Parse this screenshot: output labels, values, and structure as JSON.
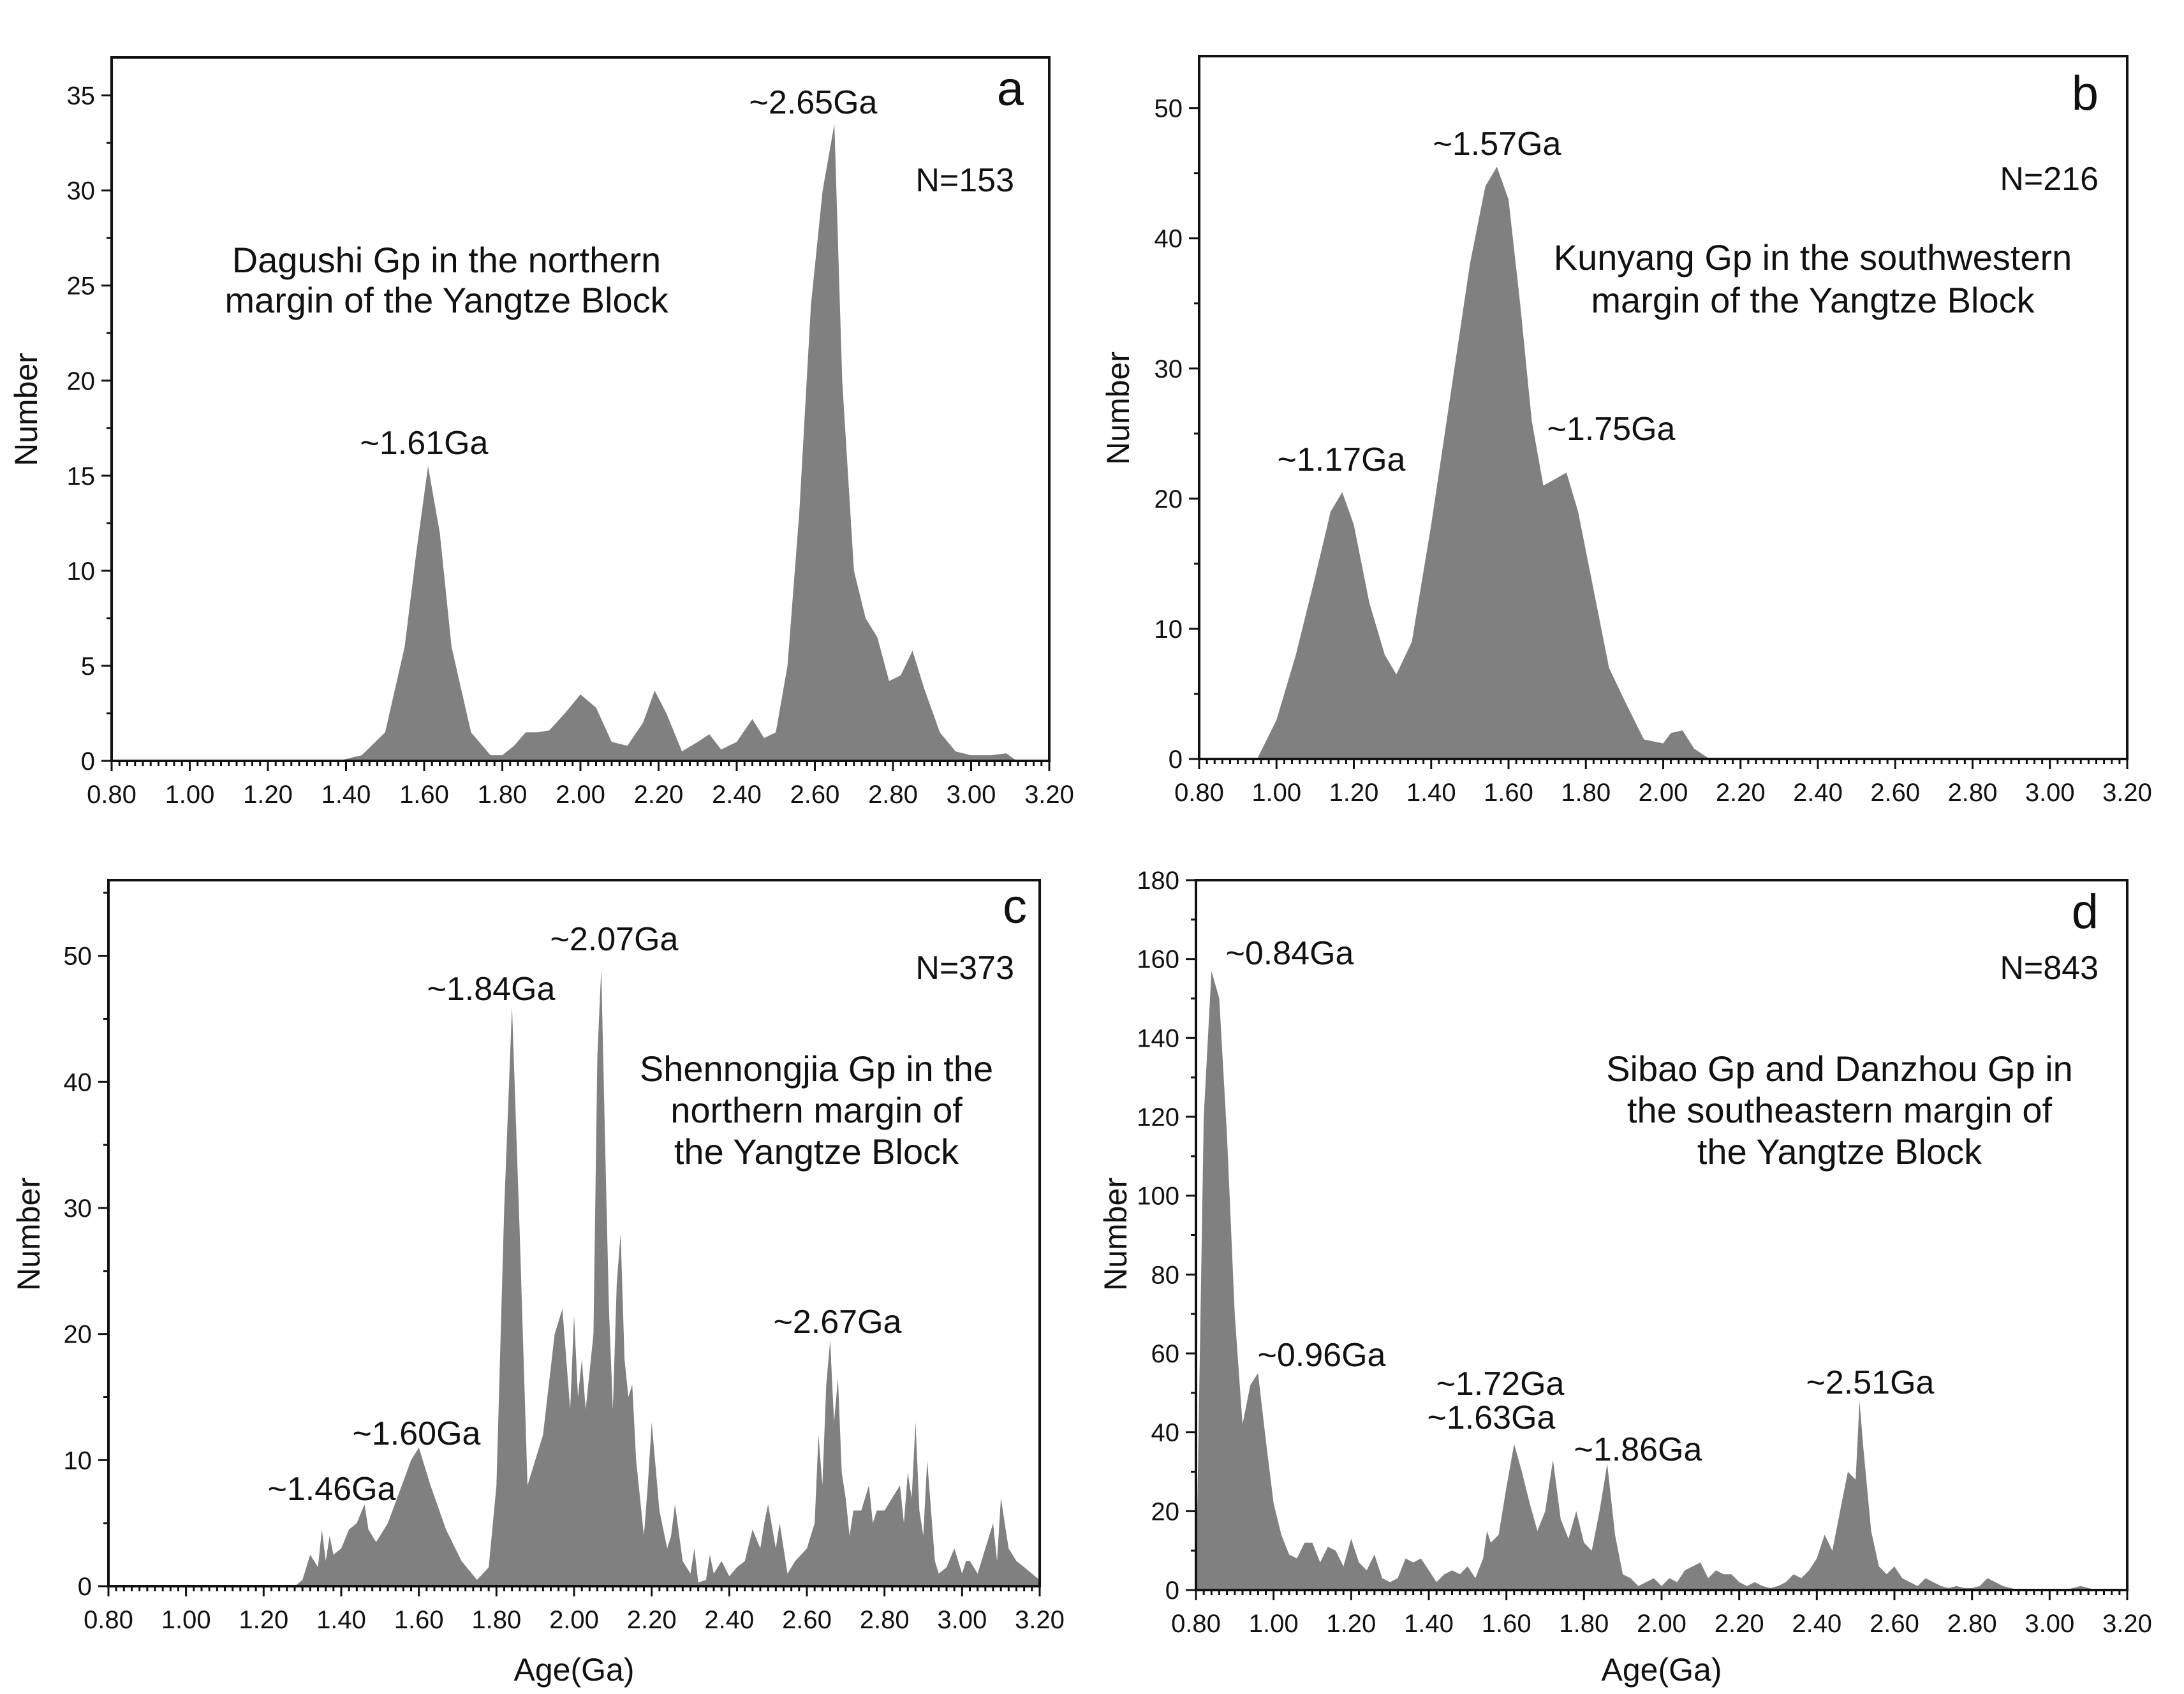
{
  "figure": {
    "colors": {
      "fill": "#808080",
      "axis": "#111111",
      "text": "#111111",
      "background": "#ffffff"
    }
  },
  "chart_data": [
    {
      "panel": "a",
      "type": "area",
      "title": "",
      "xlabel": "",
      "ylabel": "Number",
      "xlim": [
        0.8,
        3.2
      ],
      "ylim": [
        0,
        37
      ],
      "yticks": [
        0,
        5,
        10,
        15,
        20,
        25,
        30,
        35
      ],
      "xtick_labels": [
        "0.80",
        "1.00",
        "1.20",
        "1.40",
        "1.60",
        "1.80",
        "2.00",
        "2.20",
        "2.40",
        "2.60",
        "2.80",
        "3.00",
        "3.20"
      ],
      "ytick_labels": [
        "0",
        "5",
        "10",
        "15",
        "20",
        "25",
        "30",
        "35"
      ],
      "n_label": "N=153",
      "caption": [
        "Dagushi  Gp  in the northern",
        "margin of the Yangtze  Block"
      ],
      "peaks": [
        {
          "label": "~1.61Ga",
          "age": 1.61,
          "value": 15.5
        },
        {
          "label": "~2.65Ga",
          "age": 2.65,
          "value": 33.5
        }
      ],
      "series": [
        {
          "name": "Dagushi Gp",
          "x": [
            0.8,
            1.38,
            1.44,
            1.5,
            1.55,
            1.58,
            1.61,
            1.64,
            1.67,
            1.72,
            1.77,
            1.8,
            1.83,
            1.86,
            1.89,
            1.92,
            1.96,
            2.0,
            2.04,
            2.08,
            2.12,
            2.16,
            2.19,
            2.22,
            2.26,
            2.3,
            2.33,
            2.36,
            2.4,
            2.44,
            2.47,
            2.5,
            2.53,
            2.56,
            2.59,
            2.62,
            2.65,
            2.67,
            2.7,
            2.73,
            2.76,
            2.79,
            2.82,
            2.85,
            2.88,
            2.92,
            2.96,
            3.0,
            3.05,
            3.09,
            3.11,
            3.12
          ],
          "y": [
            0,
            0,
            0.3,
            1.5,
            6,
            11,
            15.5,
            12,
            6,
            1.5,
            0.3,
            0.3,
            0.8,
            1.5,
            1.5,
            1.6,
            2.5,
            3.5,
            2.8,
            1,
            0.8,
            2,
            3.7,
            2.5,
            0.5,
            1,
            1.4,
            0.6,
            1,
            2.2,
            1.2,
            1.5,
            5,
            13,
            24,
            30,
            33.5,
            20,
            10,
            7.5,
            6.5,
            4.2,
            4.5,
            5.8,
            3.8,
            1.5,
            0.5,
            0.3,
            0.3,
            0.4,
            0.1,
            0
          ]
        }
      ]
    },
    {
      "panel": "b",
      "type": "area",
      "title": "",
      "xlabel": "",
      "ylabel": "Number",
      "xlim": [
        0.8,
        3.2
      ],
      "ylim": [
        0,
        54
      ],
      "yticks": [
        0,
        10,
        20,
        30,
        40,
        50
      ],
      "xtick_labels": [
        "0.80",
        "1.00",
        "1.20",
        "1.40",
        "1.60",
        "1.80",
        "2.00",
        "2.20",
        "2.40",
        "2.60",
        "2.80",
        "3.00",
        "3.20"
      ],
      "ytick_labels": [
        "0",
        "10",
        "20",
        "30",
        "40",
        "50"
      ],
      "n_label": "N=216",
      "caption": [
        "Kunyang  Gp  in the southwestern",
        "margin of the Yangtze  Block"
      ],
      "peaks": [
        {
          "label": "~1.17Ga",
          "age": 1.17,
          "value": 20.5
        },
        {
          "label": "~1.57Ga",
          "age": 1.57,
          "value": 45.5
        },
        {
          "label": "~1.75Ga",
          "age": 1.75,
          "value": 22.0
        }
      ],
      "series": [
        {
          "name": "Kunyang Gp",
          "x": [
            0.8,
            0.95,
            1.0,
            1.05,
            1.1,
            1.14,
            1.17,
            1.2,
            1.24,
            1.28,
            1.31,
            1.35,
            1.4,
            1.45,
            1.5,
            1.54,
            1.57,
            1.6,
            1.63,
            1.66,
            1.69,
            1.72,
            1.75,
            1.78,
            1.82,
            1.86,
            1.9,
            1.95,
            2.0,
            2.02,
            2.05,
            2.08,
            2.12,
            3.2
          ],
          "y": [
            0,
            0,
            3,
            8,
            14,
            19,
            20.5,
            18,
            12,
            8,
            6.5,
            9,
            18,
            28,
            38,
            44,
            45.5,
            43,
            35,
            26,
            21,
            21.5,
            22,
            19,
            13,
            7,
            4.5,
            1.5,
            1.2,
            2,
            2.2,
            0.8,
            0,
            0
          ]
        }
      ]
    },
    {
      "panel": "c",
      "type": "area",
      "title": "",
      "xlabel": "Age(Ga)",
      "ylabel": "Number",
      "xlim": [
        0.8,
        3.2
      ],
      "ylim": [
        0,
        56
      ],
      "yticks": [
        0,
        10,
        20,
        30,
        40,
        50
      ],
      "xtick_labels": [
        "0.80",
        "1.00",
        "1.20",
        "1.40",
        "1.60",
        "1.80",
        "2.00",
        "2.20",
        "2.40",
        "2.60",
        "2.80",
        "3.00",
        "3.20"
      ],
      "ytick_labels": [
        "0",
        "10",
        "20",
        "30",
        "40",
        "50"
      ],
      "n_label": "N=373",
      "caption": [
        "Shennongjia  Gp  in the",
        "northern margin of",
        "the Yangtze  Block"
      ],
      "peaks": [
        {
          "label": "~1.46Ga",
          "age": 1.46,
          "value": 6.5
        },
        {
          "label": "~1.60Ga",
          "age": 1.6,
          "value": 11.0
        },
        {
          "label": "~1.84Ga",
          "age": 1.84,
          "value": 46.0
        },
        {
          "label": "~2.07Ga",
          "age": 2.07,
          "value": 49.0
        },
        {
          "label": "~2.67Ga",
          "age": 2.67,
          "value": 19.5
        }
      ],
      "series": [
        {
          "name": "Shennongjia Gp",
          "x": [
            0.8,
            1.28,
            1.3,
            1.32,
            1.34,
            1.35,
            1.36,
            1.37,
            1.38,
            1.4,
            1.42,
            1.44,
            1.46,
            1.47,
            1.49,
            1.52,
            1.55,
            1.58,
            1.6,
            1.63,
            1.67,
            1.71,
            1.75,
            1.78,
            1.8,
            1.82,
            1.84,
            1.86,
            1.88,
            1.92,
            1.95,
            1.97,
            1.99,
            2.0,
            2.01,
            2.02,
            2.03,
            2.05,
            2.06,
            2.07,
            2.08,
            2.09,
            2.1,
            2.11,
            2.12,
            2.13,
            2.14,
            2.15,
            2.16,
            2.18,
            2.19,
            2.2,
            2.22,
            2.24,
            2.25,
            2.26,
            2.28,
            2.3,
            2.31,
            2.32,
            2.34,
            2.35,
            2.36,
            2.38,
            2.4,
            2.42,
            2.44,
            2.46,
            2.48,
            2.49,
            2.5,
            2.52,
            2.53,
            2.55,
            2.57,
            2.6,
            2.62,
            2.63,
            2.64,
            2.65,
            2.66,
            2.67,
            2.68,
            2.69,
            2.7,
            2.71,
            2.72,
            2.74,
            2.76,
            2.77,
            2.78,
            2.8,
            2.82,
            2.84,
            2.85,
            2.86,
            2.87,
            2.88,
            2.89,
            2.9,
            2.91,
            2.92,
            2.93,
            2.94,
            2.96,
            2.98,
            3.0,
            3.01,
            3.02,
            3.04,
            3.06,
            3.08,
            3.09,
            3.1,
            3.11,
            3.12,
            3.14,
            3.16,
            3.18,
            3.2
          ],
          "y": [
            0,
            0,
            0.5,
            2.5,
            1.5,
            4.5,
            2,
            4,
            2.5,
            3,
            4.5,
            5,
            6.5,
            4.5,
            3.5,
            5,
            7.5,
            10,
            11,
            8,
            4.5,
            2,
            0.5,
            1.5,
            8,
            30,
            46,
            28,
            8,
            12,
            20,
            22,
            14,
            21.5,
            15,
            18,
            14,
            20,
            42,
            49,
            35,
            22,
            14,
            24,
            28,
            18,
            15,
            16,
            10,
            4,
            8,
            13,
            6,
            3,
            4,
            6.5,
            2,
            1,
            3,
            0.3,
            0.5,
            2.5,
            1,
            2,
            0.8,
            1.5,
            2,
            4.5,
            3,
            5,
            6.5,
            3,
            5,
            1,
            2,
            3,
            5,
            12,
            8,
            16,
            19.5,
            13,
            16.5,
            9,
            7,
            4,
            6,
            6,
            8,
            5,
            6,
            6,
            7,
            8,
            5,
            9,
            7,
            13,
            6,
            4,
            10,
            6,
            2,
            1,
            1.5,
            3,
            1,
            2,
            2,
            1,
            3,
            5,
            2,
            7,
            5,
            3,
            2,
            1.5,
            1,
            0.5
          ]
        }
      ]
    },
    {
      "panel": "d",
      "type": "area",
      "title": "",
      "xlabel": "Age(Ga)",
      "ylabel": "Number",
      "xlim": [
        0.8,
        3.2
      ],
      "ylim": [
        0,
        180
      ],
      "yticks": [
        0,
        20,
        40,
        60,
        80,
        100,
        120,
        140,
        160,
        180
      ],
      "xtick_labels": [
        "0.80",
        "1.00",
        "1.20",
        "1.40",
        "1.60",
        "1.80",
        "2.00",
        "2.20",
        "2.40",
        "2.60",
        "2.80",
        "3.00",
        "3.20"
      ],
      "ytick_labels": [
        "0",
        "20",
        "40",
        "60",
        "80",
        "100",
        "120",
        "140",
        "160",
        "180"
      ],
      "n_label": "N=843",
      "caption": [
        "Sibao  Gp  and Danzhou Gp in",
        "the southeastern margin of",
        "the  Yangtze  Block"
      ],
      "peaks": [
        {
          "label": "~0.84Ga",
          "age": 0.84,
          "value": 157
        },
        {
          "label": "~0.96Ga",
          "age": 0.96,
          "value": 55
        },
        {
          "label": "~1.63Ga",
          "age": 1.63,
          "value": 37
        },
        {
          "label": "~1.72Ga",
          "age": 1.72,
          "value": 33
        },
        {
          "label": "~1.86Ga",
          "age": 1.86,
          "value": 32
        },
        {
          "label": "~2.51Ga",
          "age": 2.51,
          "value": 48
        }
      ],
      "series": [
        {
          "name": "Sibao Gp and Danzhou Gp",
          "x": [
            0.8,
            0.81,
            0.82,
            0.84,
            0.86,
            0.88,
            0.9,
            0.92,
            0.94,
            0.96,
            0.98,
            1.0,
            1.02,
            1.04,
            1.06,
            1.08,
            1.1,
            1.12,
            1.14,
            1.16,
            1.18,
            1.2,
            1.22,
            1.24,
            1.26,
            1.28,
            1.3,
            1.32,
            1.34,
            1.36,
            1.38,
            1.4,
            1.42,
            1.44,
            1.46,
            1.48,
            1.5,
            1.52,
            1.54,
            1.55,
            1.56,
            1.58,
            1.6,
            1.62,
            1.64,
            1.66,
            1.68,
            1.7,
            1.72,
            1.74,
            1.76,
            1.78,
            1.8,
            1.82,
            1.84,
            1.86,
            1.88,
            1.9,
            1.92,
            1.94,
            1.96,
            1.98,
            2.0,
            2.02,
            2.04,
            2.06,
            2.08,
            2.1,
            2.12,
            2.14,
            2.16,
            2.18,
            2.2,
            2.22,
            2.24,
            2.26,
            2.28,
            2.3,
            2.32,
            2.34,
            2.36,
            2.38,
            2.4,
            2.42,
            2.44,
            2.46,
            2.48,
            2.5,
            2.51,
            2.52,
            2.54,
            2.56,
            2.58,
            2.6,
            2.62,
            2.64,
            2.66,
            2.68,
            2.7,
            2.72,
            2.74,
            2.76,
            2.78,
            2.8,
            2.82,
            2.84,
            2.86,
            2.88,
            2.9,
            2.92,
            2.96,
            3.0,
            3.04,
            3.08,
            3.12,
            3.16,
            3.2
          ],
          "y": [
            0,
            60,
            120,
            157,
            150,
            115,
            70,
            42,
            52,
            55,
            38,
            22,
            14,
            9,
            8,
            12,
            12,
            7,
            11,
            10,
            6,
            13,
            7,
            5,
            9,
            3,
            2,
            3,
            8,
            7,
            8,
            5,
            2,
            4,
            5,
            4,
            6,
            3,
            8,
            15,
            12,
            14,
            26,
            37,
            30,
            22,
            15,
            20,
            33,
            18,
            13,
            20,
            12,
            10,
            20,
            32,
            14,
            4,
            3,
            1,
            2,
            3,
            1,
            3,
            2,
            5,
            6,
            7,
            3,
            5,
            4,
            4,
            2,
            1,
            2,
            1,
            0.5,
            1,
            2,
            4,
            3,
            5,
            8,
            14,
            10,
            20,
            30,
            28,
            48,
            36,
            15,
            6,
            4,
            6,
            3,
            2,
            1,
            3,
            2,
            1,
            0.5,
            1,
            0.5,
            0.5,
            1,
            3,
            2,
            1,
            0.5,
            0,
            0,
            0,
            0,
            1,
            0,
            0,
            0
          ]
        }
      ]
    }
  ]
}
